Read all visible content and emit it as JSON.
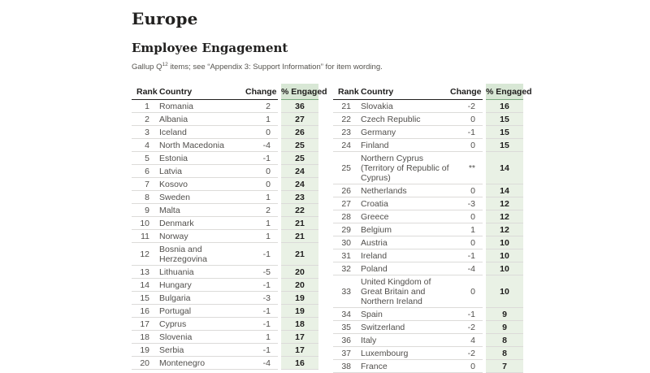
{
  "page": {
    "title": "Europe",
    "section_title": "Employee Engagement",
    "subtitle": {
      "prefix": "Gallup Q",
      "superscript": "12",
      "rest": " items; see “Appendix 3: Support Information” for item wording."
    }
  },
  "table": {
    "headers": {
      "rank": "Rank",
      "country": "Country",
      "change": "Change",
      "engaged": "% Engaged"
    },
    "left_rows": [
      {
        "rank": "1",
        "country": "Romania",
        "change": "2",
        "engaged": "36"
      },
      {
        "rank": "2",
        "country": "Albania",
        "change": "1",
        "engaged": "27"
      },
      {
        "rank": "3",
        "country": "Iceland",
        "change": "0",
        "engaged": "26"
      },
      {
        "rank": "4",
        "country": "North Macedonia",
        "change": "-4",
        "engaged": "25"
      },
      {
        "rank": "5",
        "country": "Estonia",
        "change": "-1",
        "engaged": "25"
      },
      {
        "rank": "6",
        "country": "Latvia",
        "change": "0",
        "engaged": "24"
      },
      {
        "rank": "7",
        "country": "Kosovo",
        "change": "0",
        "engaged": "24"
      },
      {
        "rank": "8",
        "country": "Sweden",
        "change": "1",
        "engaged": "23"
      },
      {
        "rank": "9",
        "country": "Malta",
        "change": "2",
        "engaged": "22"
      },
      {
        "rank": "10",
        "country": "Denmark",
        "change": "1",
        "engaged": "21"
      },
      {
        "rank": "11",
        "country": "Norway",
        "change": "1",
        "engaged": "21"
      },
      {
        "rank": "12",
        "country": "Bosnia and Herzegovina",
        "change": "-1",
        "engaged": "21"
      },
      {
        "rank": "13",
        "country": "Lithuania",
        "change": "-5",
        "engaged": "20"
      },
      {
        "rank": "14",
        "country": "Hungary",
        "change": "-1",
        "engaged": "20"
      },
      {
        "rank": "15",
        "country": "Bulgaria",
        "change": "-3",
        "engaged": "19"
      },
      {
        "rank": "16",
        "country": "Portugal",
        "change": "-1",
        "engaged": "19"
      },
      {
        "rank": "17",
        "country": "Cyprus",
        "change": "-1",
        "engaged": "18"
      },
      {
        "rank": "18",
        "country": "Slovenia",
        "change": "1",
        "engaged": "17"
      },
      {
        "rank": "19",
        "country": "Serbia",
        "change": "-1",
        "engaged": "17"
      },
      {
        "rank": "20",
        "country": "Montenegro",
        "change": "-4",
        "engaged": "16"
      }
    ],
    "right_rows": [
      {
        "rank": "21",
        "country": "Slovakia",
        "change": "-2",
        "engaged": "16"
      },
      {
        "rank": "22",
        "country": "Czech Republic",
        "change": "0",
        "engaged": "15"
      },
      {
        "rank": "23",
        "country": "Germany",
        "change": "-1",
        "engaged": "15"
      },
      {
        "rank": "24",
        "country": "Finland",
        "change": "0",
        "engaged": "15"
      },
      {
        "rank": "25",
        "country": "Northern Cyprus (Territory of Republic of Cyprus)",
        "change": "**",
        "engaged": "14"
      },
      {
        "rank": "26",
        "country": "Netherlands",
        "change": "0",
        "engaged": "14"
      },
      {
        "rank": "27",
        "country": "Croatia",
        "change": "-3",
        "engaged": "12"
      },
      {
        "rank": "28",
        "country": "Greece",
        "change": "0",
        "engaged": "12"
      },
      {
        "rank": "29",
        "country": "Belgium",
        "change": "1",
        "engaged": "12"
      },
      {
        "rank": "30",
        "country": "Austria",
        "change": "0",
        "engaged": "10"
      },
      {
        "rank": "31",
        "country": "Ireland",
        "change": "-1",
        "engaged": "10"
      },
      {
        "rank": "32",
        "country": "Poland",
        "change": "-4",
        "engaged": "10"
      },
      {
        "rank": "33",
        "country": "United Kingdom of Great Britain and Northern Ireland",
        "change": "0",
        "engaged": "10"
      },
      {
        "rank": "34",
        "country": "Spain",
        "change": "-1",
        "engaged": "9"
      },
      {
        "rank": "35",
        "country": "Switzerland",
        "change": "-2",
        "engaged": "9"
      },
      {
        "rank": "36",
        "country": "Italy",
        "change": "4",
        "engaged": "8"
      },
      {
        "rank": "37",
        "country": "Luxembourg",
        "change": "-2",
        "engaged": "8"
      },
      {
        "rank": "38",
        "country": "France",
        "change": "0",
        "engaged": "7"
      }
    ]
  },
  "colors": {
    "ink": "#21201f",
    "body-text": "#514f4c",
    "muted": "#55534e",
    "row-border": "#dcdbd9",
    "header-border": "#21201f",
    "green-header": "#d8e7d5",
    "green-cell": "#e9f1e5",
    "green-border": "#7aa97f"
  }
}
